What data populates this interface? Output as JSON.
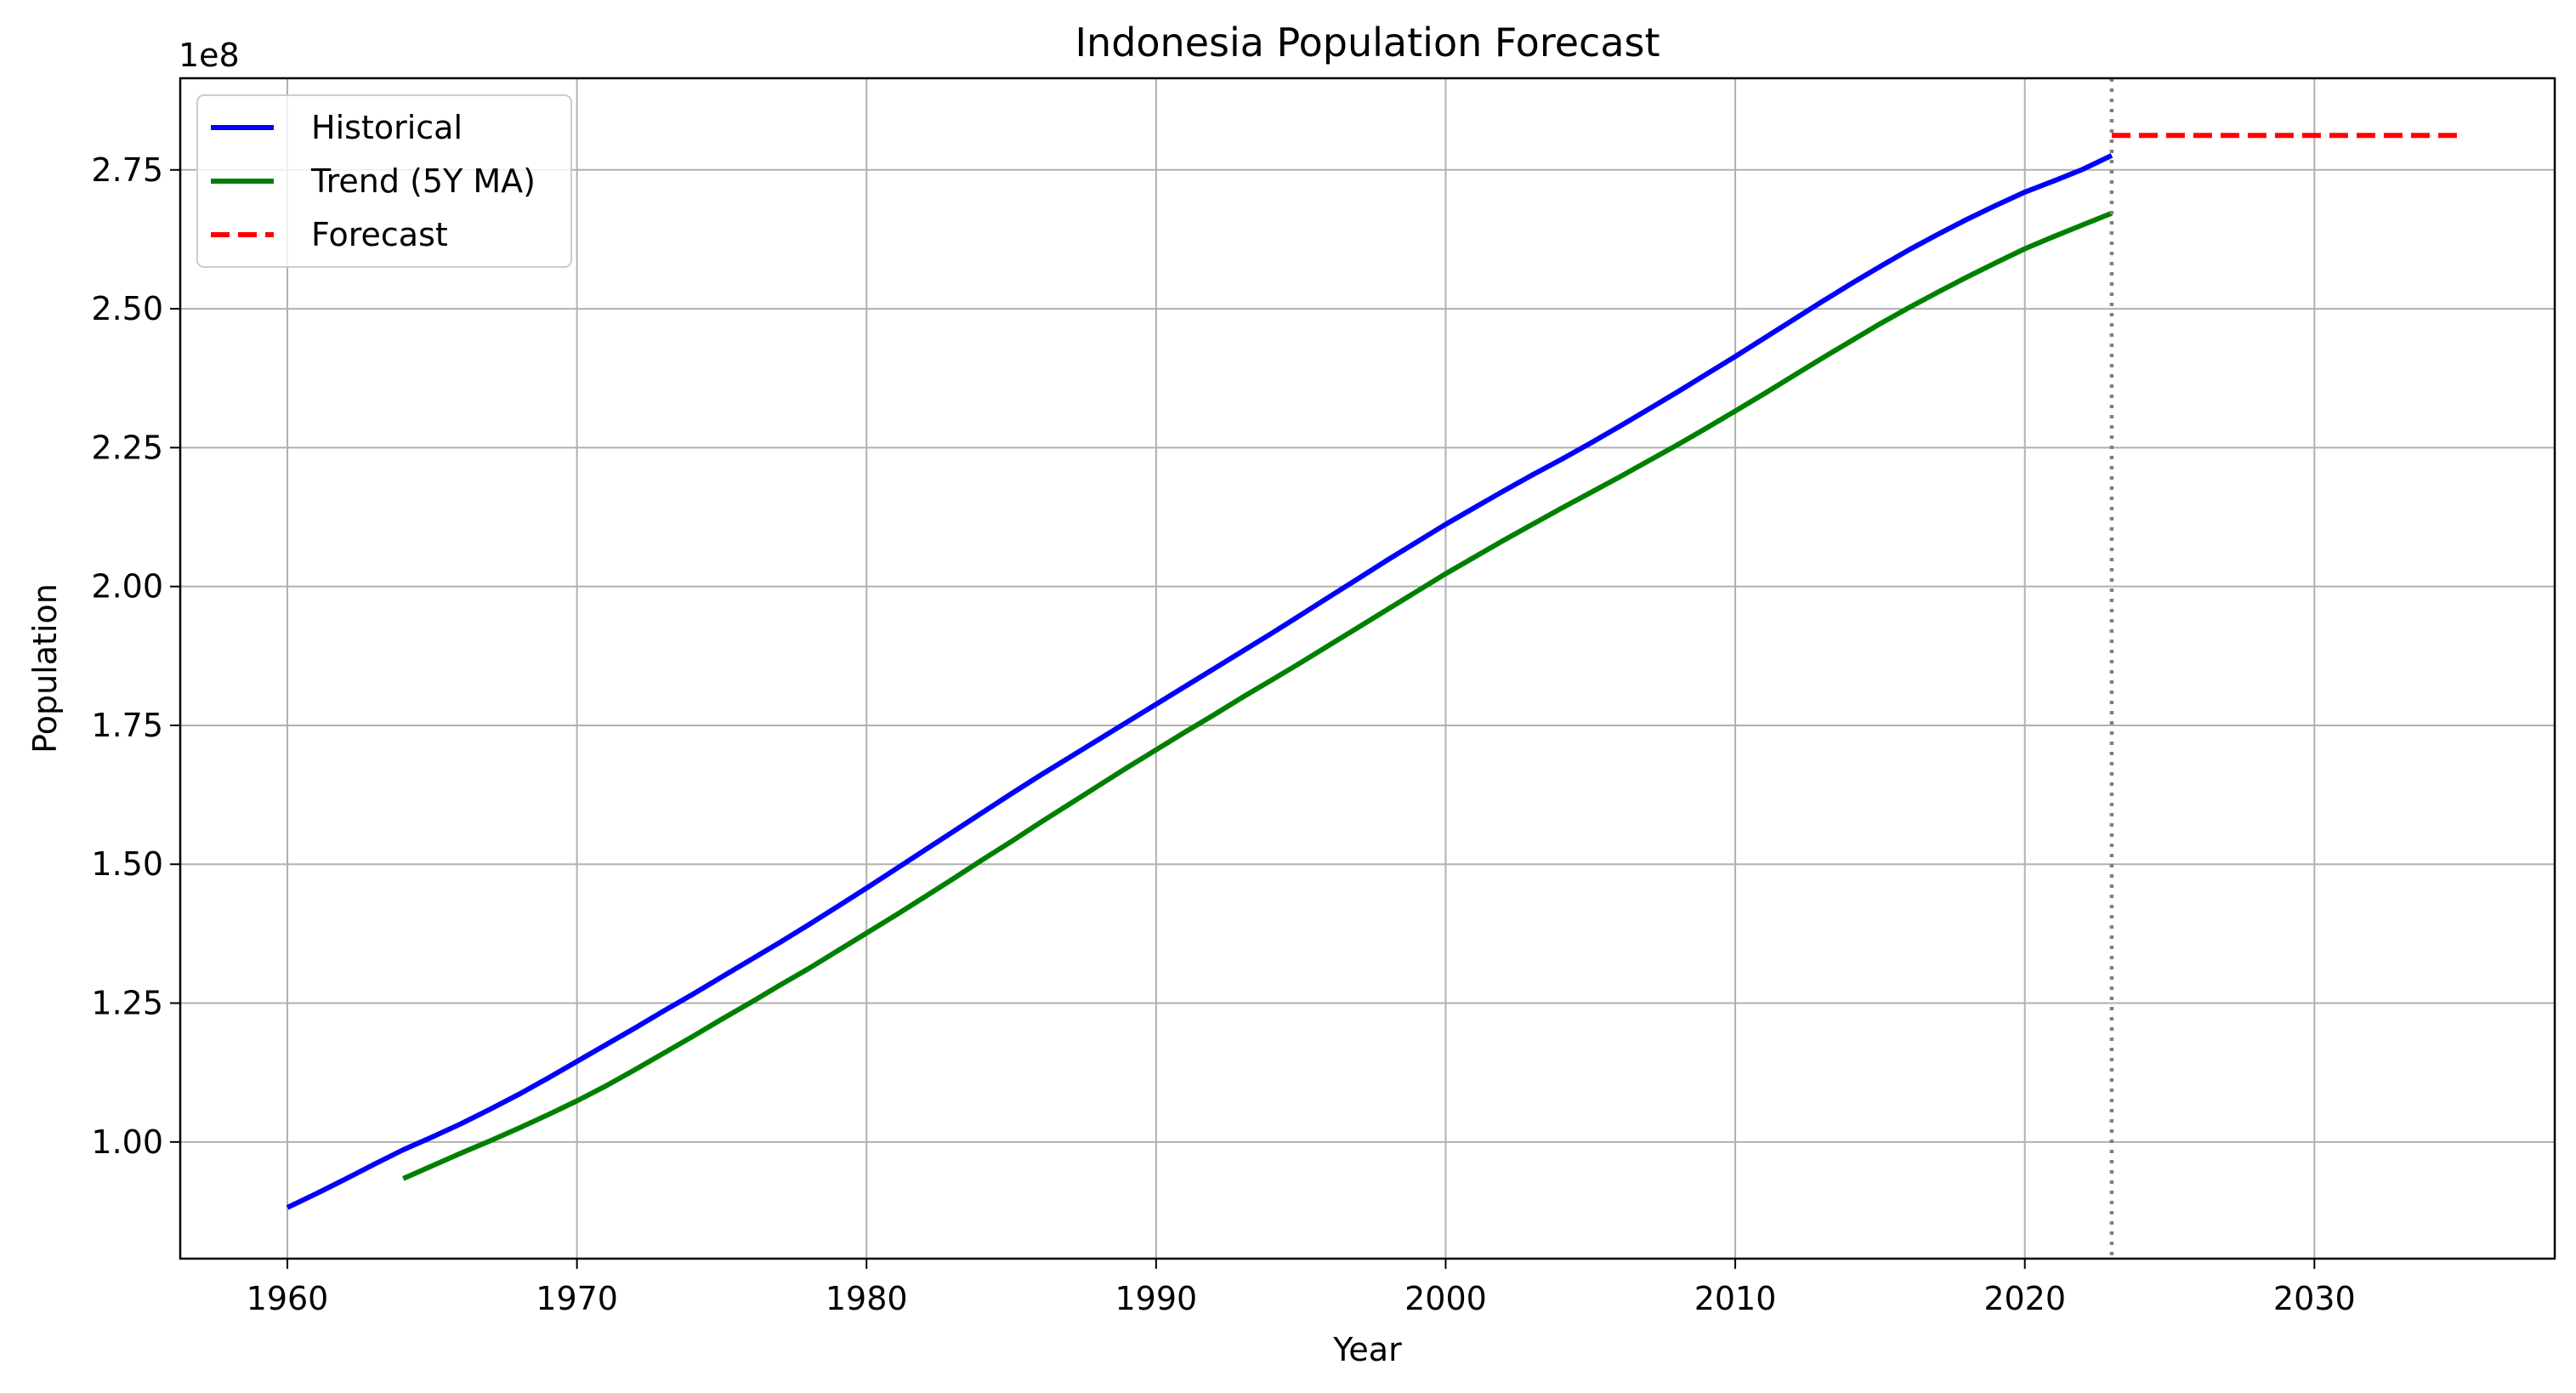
{
  "chart_data": {
    "type": "line",
    "title": "Indonesia Population Forecast",
    "xlabel": "Year",
    "ylabel": "Population",
    "y_offset_label": "1e8",
    "xlim": [
      1956.3,
      2038.3
    ],
    "ylim": [
      0.79,
      2.915
    ],
    "y_scale_note": "values in units of 1e8",
    "x_ticks": [
      1960,
      1970,
      1980,
      1990,
      2000,
      2010,
      2020,
      2030
    ],
    "x_tick_labels": [
      "1960",
      "1970",
      "1980",
      "1990",
      "2000",
      "2010",
      "2020",
      "2030"
    ],
    "y_ticks": [
      1.0,
      1.25,
      1.5,
      1.75,
      2.0,
      2.25,
      2.5,
      2.75
    ],
    "y_tick_labels": [
      "1.00",
      "1.25",
      "1.50",
      "1.75",
      "2.00",
      "2.25",
      "2.50",
      "2.75"
    ],
    "grid": true,
    "legend_position": "top-left",
    "divider": {
      "x": 2023,
      "style": "dotted",
      "color": "#808080"
    },
    "series": [
      {
        "name": "Historical",
        "color": "#0000ff",
        "style": "solid",
        "x": [
          1960,
          1961,
          1962,
          1963,
          1964,
          1965,
          1966,
          1967,
          1968,
          1969,
          1970,
          1971,
          1972,
          1973,
          1974,
          1975,
          1976,
          1977,
          1978,
          1979,
          1980,
          1981,
          1982,
          1983,
          1984,
          1985,
          1986,
          1987,
          1988,
          1989,
          1990,
          1991,
          1992,
          1993,
          1994,
          1995,
          1996,
          1997,
          1998,
          1999,
          2000,
          2001,
          2002,
          2003,
          2004,
          2005,
          2006,
          2007,
          2008,
          2009,
          2010,
          2011,
          2012,
          2013,
          2014,
          2015,
          2016,
          2017,
          2018,
          2019,
          2020,
          2021,
          2022,
          2023
        ],
        "values": [
          0.882,
          0.907,
          0.933,
          0.96,
          0.986,
          1.009,
          1.033,
          1.059,
          1.086,
          1.115,
          1.145,
          1.175,
          1.205,
          1.236,
          1.266,
          1.297,
          1.328,
          1.359,
          1.391,
          1.424,
          1.457,
          1.491,
          1.525,
          1.559,
          1.593,
          1.627,
          1.66,
          1.692,
          1.724,
          1.756,
          1.788,
          1.82,
          1.852,
          1.884,
          1.916,
          1.949,
          1.982,
          2.015,
          2.048,
          2.08,
          2.112,
          2.142,
          2.172,
          2.201,
          2.229,
          2.258,
          2.288,
          2.319,
          2.35,
          2.382,
          2.414,
          2.447,
          2.48,
          2.513,
          2.545,
          2.576,
          2.606,
          2.634,
          2.661,
          2.686,
          2.71,
          2.73,
          2.751,
          2.776
        ]
      },
      {
        "name": "Trend (5Y MA)",
        "color": "#008000",
        "style": "solid",
        "x": [
          1964,
          1965,
          1966,
          1967,
          1968,
          1969,
          1970,
          1971,
          1972,
          1973,
          1974,
          1975,
          1976,
          1977,
          1978,
          1979,
          1980,
          1981,
          1982,
          1983,
          1984,
          1985,
          1986,
          1987,
          1988,
          1989,
          1990,
          1991,
          1992,
          1993,
          1994,
          1995,
          1996,
          1997,
          1998,
          1999,
          2000,
          2001,
          2002,
          2003,
          2004,
          2005,
          2006,
          2007,
          2008,
          2009,
          2010,
          2011,
          2012,
          2013,
          2014,
          2015,
          2016,
          2017,
          2018,
          2019,
          2020,
          2021,
          2022,
          2023
        ],
        "values": [
          0.934,
          0.957,
          0.98,
          1.002,
          1.025,
          1.049,
          1.074,
          1.101,
          1.13,
          1.16,
          1.19,
          1.221,
          1.251,
          1.282,
          1.312,
          1.344,
          1.376,
          1.408,
          1.441,
          1.474,
          1.508,
          1.541,
          1.575,
          1.608,
          1.641,
          1.674,
          1.706,
          1.738,
          1.769,
          1.801,
          1.832,
          1.863,
          1.895,
          1.927,
          1.959,
          1.991,
          2.023,
          2.053,
          2.083,
          2.112,
          2.141,
          2.169,
          2.197,
          2.226,
          2.255,
          2.285,
          2.316,
          2.347,
          2.379,
          2.411,
          2.442,
          2.473,
          2.502,
          2.53,
          2.557,
          2.583,
          2.608,
          2.63,
          2.651,
          2.672
        ]
      },
      {
        "name": "Forecast",
        "color": "#ff0000",
        "style": "dashed",
        "x": [
          2023,
          2035
        ],
        "values": [
          2.812,
          2.812
        ]
      }
    ]
  }
}
